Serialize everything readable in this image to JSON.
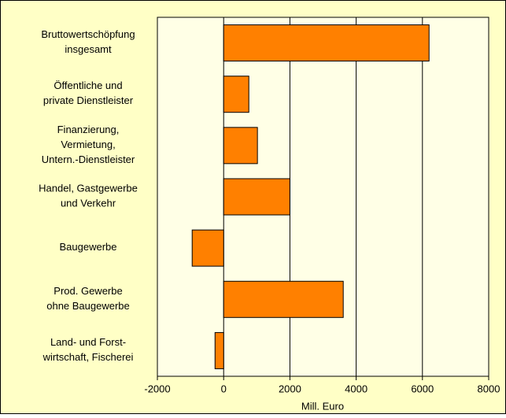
{
  "chart_data": {
    "type": "bar",
    "orientation": "horizontal",
    "categories": [
      [
        "Bruttowertschöpfung",
        "insgesamt"
      ],
      [
        "Öffentliche und",
        "private Dienstleister"
      ],
      [
        "Finanzierung,",
        "Vermietung,",
        "Untern.-Dienstleister"
      ],
      [
        "Handel, Gastgewerbe",
        "und Verkehr"
      ],
      [
        "Baugewerbe"
      ],
      [
        "Prod. Gewerbe",
        "ohne Baugewerbe"
      ],
      [
        "Land- und Forst-",
        "wirtschaft, Fischerei"
      ]
    ],
    "values": [
      6200,
      760,
      1020,
      2000,
      -950,
      3610,
      -260
    ],
    "color": "#ff8000",
    "xlim": [
      -2000,
      8000
    ],
    "xticks": [
      -2000,
      0,
      2000,
      4000,
      6000,
      8000
    ],
    "xlabel": "Mill. Euro",
    "grid": true
  }
}
